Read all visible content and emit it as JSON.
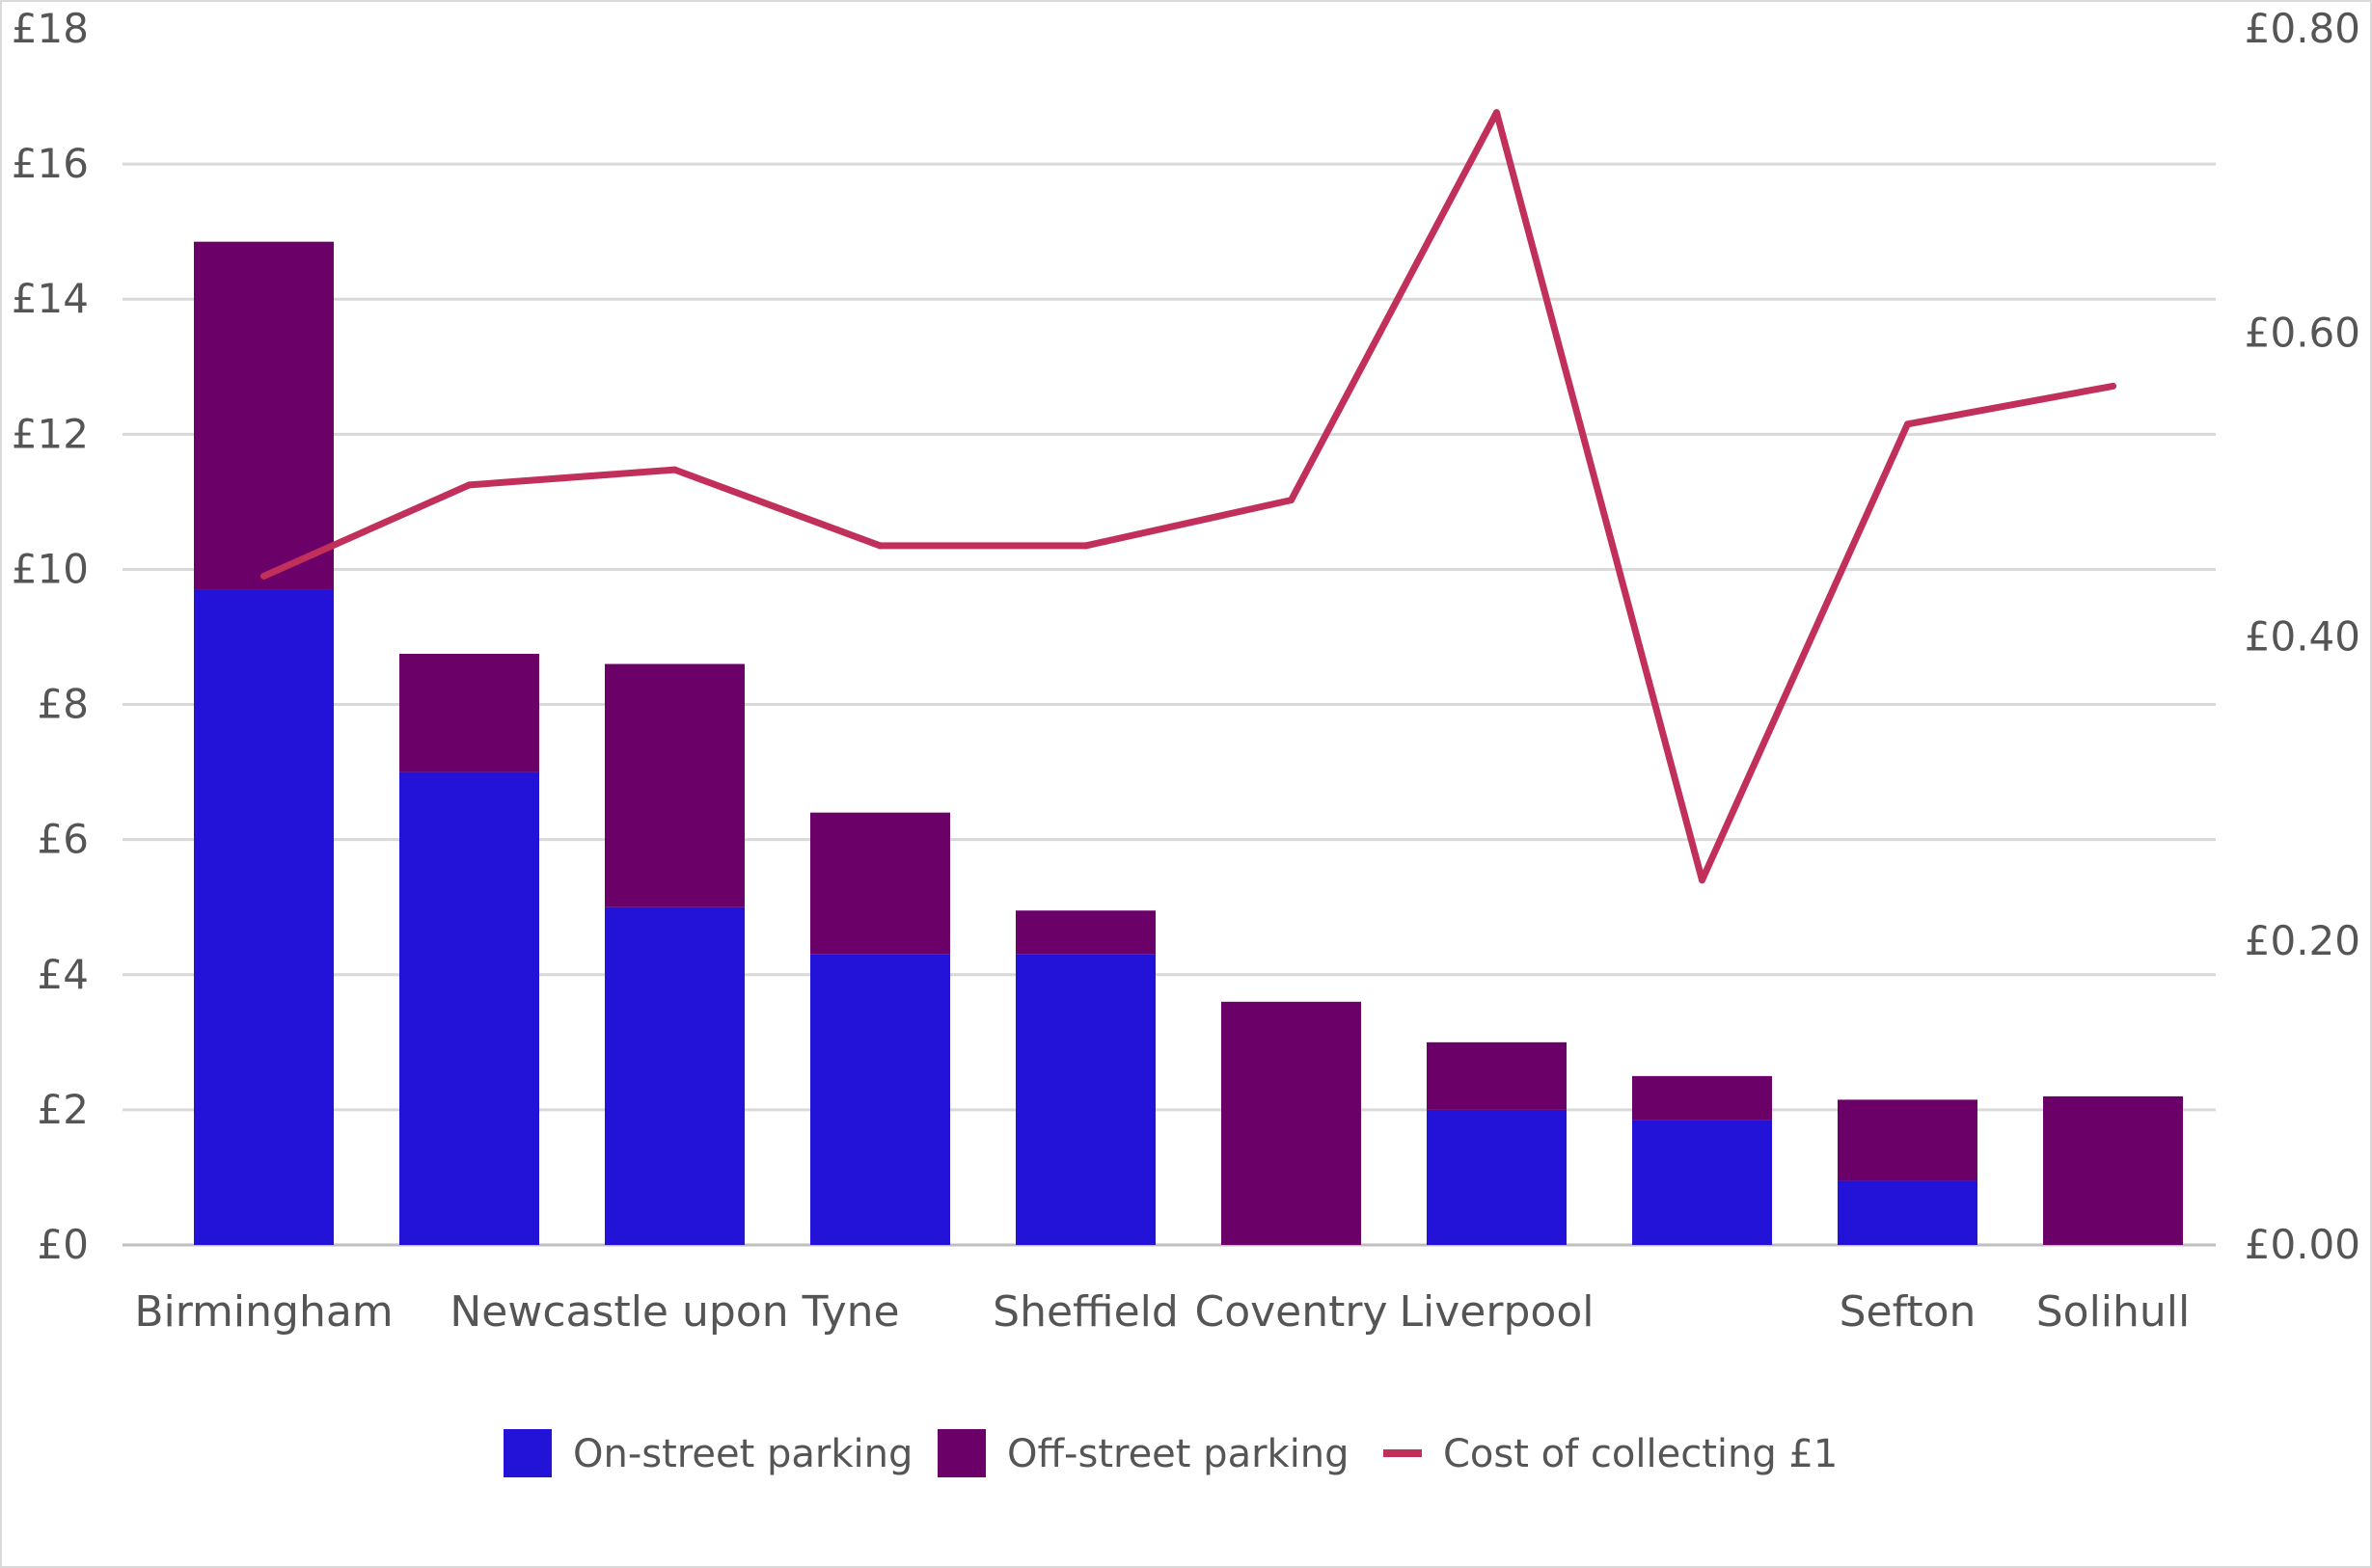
{
  "chart_data": {
    "type": "bar",
    "stacked": true,
    "categories": [
      "Birmingham",
      "",
      "Newcastle upon Tyne",
      "",
      "Sheffield",
      "Coventry",
      "Liverpool",
      "",
      "Sefton",
      "Solihull"
    ],
    "series": [
      {
        "name": "On-street parking",
        "type": "bar",
        "axis": "left",
        "color": "#2313d8",
        "values": [
          9.7,
          7.0,
          5.0,
          4.3,
          4.3,
          0,
          2.0,
          1.85,
          0.95,
          0
        ]
      },
      {
        "name": "Off-street parking",
        "type": "bar",
        "axis": "left",
        "color": "#6a0068",
        "values": [
          5.15,
          1.75,
          3.6,
          2.1,
          0.65,
          3.6,
          1.0,
          0.65,
          1.2,
          2.2
        ]
      },
      {
        "name": "Cost of collecting £1",
        "type": "line",
        "axis": "right",
        "color": "#c0305a",
        "values": [
          0.44,
          0.5,
          0.51,
          0.46,
          0.46,
          0.49,
          0.745,
          0.24,
          0.54,
          0.565
        ]
      }
    ],
    "y_left": {
      "ylim": [
        0,
        18
      ],
      "ticks": [
        "£0",
        "£2",
        "£4",
        "£6",
        "£8",
        "£10",
        "£12",
        "£14",
        "£16",
        "£18"
      ]
    },
    "y_right": {
      "ylim": [
        0,
        0.8
      ],
      "ticks": [
        "£0.00",
        "£0.20",
        "£0.40",
        "£0.60",
        "£0.80"
      ]
    },
    "grid": true,
    "legend_position": "bottom"
  }
}
